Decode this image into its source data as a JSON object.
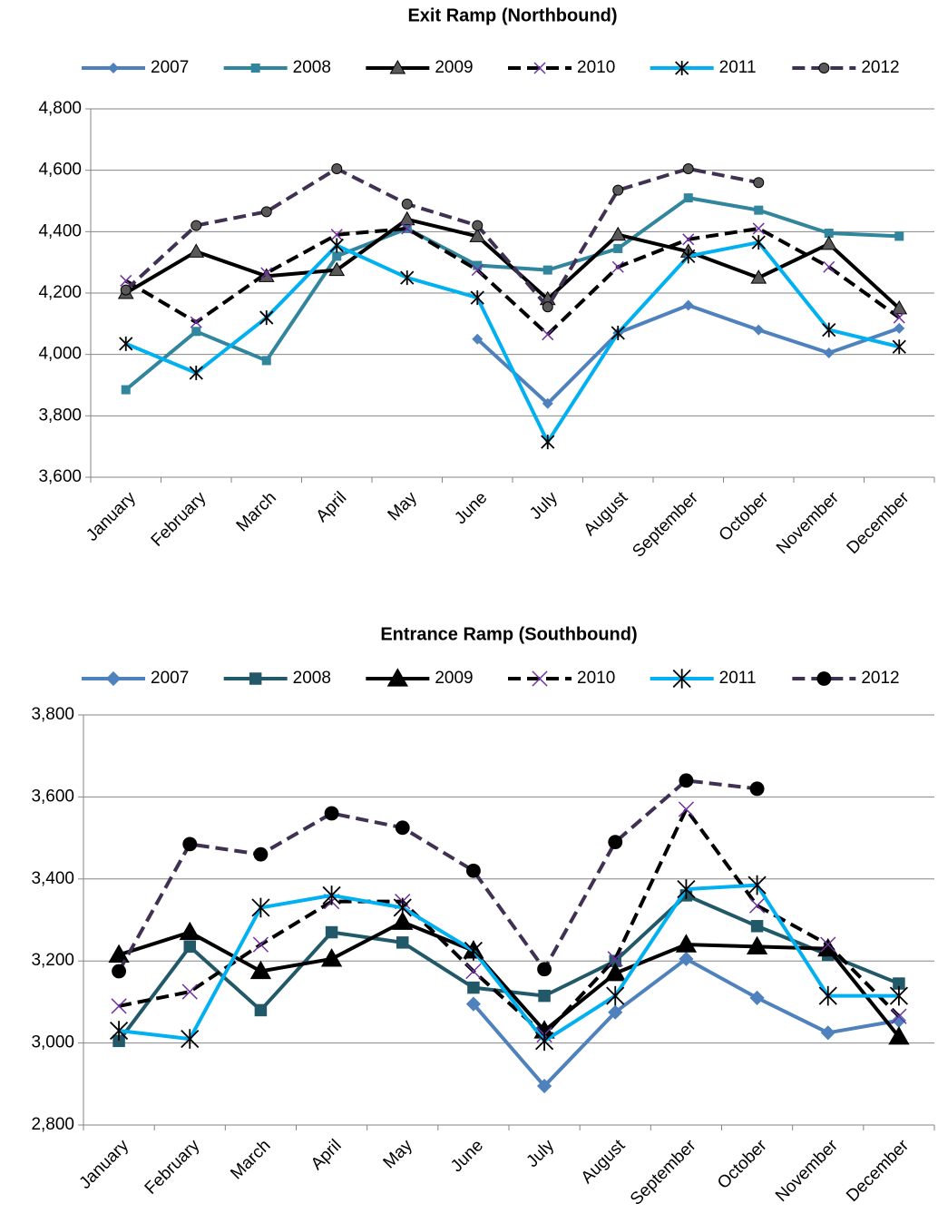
{
  "chart_data": [
    {
      "type": "line",
      "title": "Exit Ramp (Northbound)",
      "categories": [
        "January",
        "February",
        "March",
        "April",
        "May",
        "June",
        "July",
        "August",
        "September",
        "October",
        "November",
        "December"
      ],
      "ylim": [
        3600,
        4800
      ],
      "yticks": [
        {
          "value": 3600,
          "label": "3,600"
        },
        {
          "value": 3800,
          "label": "3,800"
        },
        {
          "value": 4000,
          "label": "4,000"
        },
        {
          "value": 4200,
          "label": "4,200"
        },
        {
          "value": 4400,
          "label": "4,400"
        },
        {
          "value": 4600,
          "label": "4,600"
        },
        {
          "value": 4800,
          "label": "4,800"
        }
      ],
      "grid": true,
      "legend": "top",
      "series": [
        {
          "name": "2007",
          "color": "#4f81bd",
          "marker": "diamond",
          "dashed": false,
          "values": [
            null,
            null,
            null,
            null,
            null,
            4050,
            3840,
            4070,
            4160,
            4080,
            4005,
            4085
          ]
        },
        {
          "name": "2008",
          "color": "#31859c",
          "marker": "square",
          "dashed": false,
          "values": [
            3885,
            4075,
            3980,
            4320,
            4410,
            4290,
            4275,
            4345,
            4510,
            4470,
            4395,
            4385
          ]
        },
        {
          "name": "2009",
          "color": "#000000",
          "marker": "triangle",
          "dashed": false,
          "values": [
            4200,
            4335,
            4255,
            4275,
            4440,
            4385,
            4180,
            4390,
            4335,
            4250,
            4360,
            4150
          ]
        },
        {
          "name": "2010",
          "color": "#000000",
          "marker": "x",
          "dashed": true,
          "values": [
            4240,
            4105,
            4265,
            4390,
            4410,
            4275,
            4065,
            4285,
            4375,
            4410,
            4285,
            4120
          ]
        },
        {
          "name": "2011",
          "color": "#00b0f0",
          "marker": "star",
          "dashed": false,
          "values": [
            4035,
            3940,
            4120,
            4355,
            4250,
            4185,
            3715,
            4070,
            4320,
            4365,
            4080,
            4025
          ]
        },
        {
          "name": "2012",
          "color": "#403152",
          "marker": "circle",
          "dashed": true,
          "values": [
            4210,
            4420,
            4465,
            4605,
            4490,
            4420,
            4155,
            4535,
            4605,
            4560,
            null,
            null
          ]
        }
      ]
    },
    {
      "type": "line",
      "title": "Entrance Ramp (Southbound)",
      "categories": [
        "January",
        "February",
        "March",
        "April",
        "May",
        "June",
        "July",
        "August",
        "September",
        "October",
        "November",
        "December"
      ],
      "ylim": [
        2800,
        3800
      ],
      "yticks": [
        {
          "value": 2800,
          "label": "2,800"
        },
        {
          "value": 3000,
          "label": "3,000"
        },
        {
          "value": 3200,
          "label": "3,200"
        },
        {
          "value": 3400,
          "label": "3,400"
        },
        {
          "value": 3600,
          "label": "3,600"
        },
        {
          "value": 3800,
          "label": "3,800"
        }
      ],
      "grid": true,
      "legend": "top",
      "series": [
        {
          "name": "2007",
          "color": "#4f81bd",
          "marker": "diamond",
          "dashed": false,
          "values": [
            null,
            null,
            null,
            null,
            null,
            3095,
            2895,
            3075,
            3205,
            3110,
            3025,
            3055
          ]
        },
        {
          "name": "2008",
          "color": "#215968",
          "marker": "square",
          "dashed": false,
          "values": [
            3005,
            3235,
            3080,
            3270,
            3245,
            3135,
            3115,
            3200,
            3360,
            3285,
            3215,
            3145
          ]
        },
        {
          "name": "2009",
          "color": "#000000",
          "marker": "triangle",
          "dashed": false,
          "values": [
            3215,
            3270,
            3175,
            3205,
            3295,
            3225,
            3030,
            3170,
            3240,
            3235,
            3230,
            3015
          ]
        },
        {
          "name": "2010",
          "color": "#000000",
          "marker": "x",
          "dashed": true,
          "values": [
            3090,
            3125,
            3240,
            3345,
            3345,
            3175,
            3020,
            3205,
            3570,
            3335,
            3240,
            3065
          ]
        },
        {
          "name": "2011",
          "color": "#00b0f0",
          "marker": "star",
          "dashed": false,
          "values": [
            3030,
            3010,
            3330,
            3360,
            3330,
            3225,
            3005,
            3115,
            3375,
            3385,
            3115,
            3115
          ]
        },
        {
          "name": "2012",
          "color": "#403152",
          "marker": "circle",
          "dashed": true,
          "values": [
            3175,
            3485,
            3460,
            3560,
            3525,
            3420,
            3180,
            3490,
            3640,
            3620,
            null,
            null
          ]
        }
      ]
    }
  ]
}
